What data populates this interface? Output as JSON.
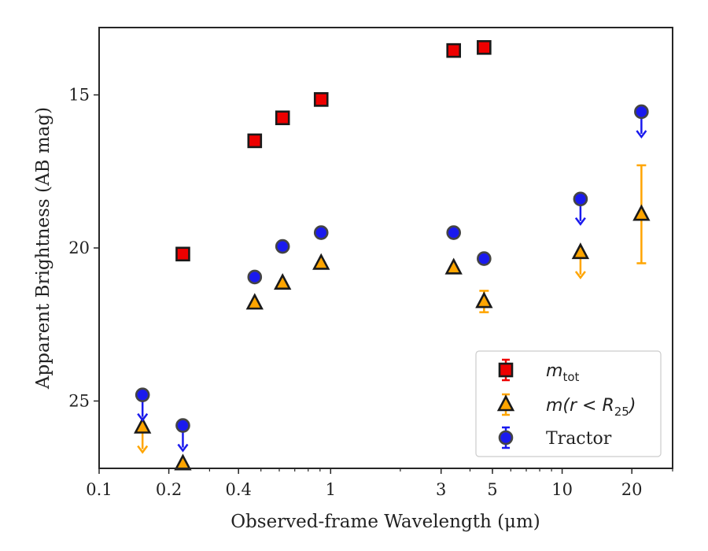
{
  "chart_data": {
    "type": "scatter",
    "xlabel": "Observed-frame Wavelength (μm)",
    "ylabel": "Apparent Brightness (AB mag)",
    "x_scale": "log",
    "xlim": [
      0.1,
      30
    ],
    "ylim": [
      12.8,
      27.2
    ],
    "y_inverted": true,
    "x_ticks": [
      {
        "value": 0.1,
        "label": "0.1"
      },
      {
        "value": 0.2,
        "label": "0.2"
      },
      {
        "value": 0.4,
        "label": "0.4"
      },
      {
        "value": 1,
        "label": "1"
      },
      {
        "value": 3,
        "label": "3"
      },
      {
        "value": 5,
        "label": "5"
      },
      {
        "value": 10,
        "label": "10"
      },
      {
        "value": 20,
        "label": "20"
      }
    ],
    "y_ticks": [
      {
        "value": 15,
        "label": "15"
      },
      {
        "value": 20,
        "label": "20"
      },
      {
        "value": 25,
        "label": "25"
      }
    ],
    "grid": false,
    "legend_position": "bottom-right",
    "series": [
      {
        "name": "m_tot",
        "marker": "square",
        "color": "#ee0000",
        "points": [
          {
            "x": 0.23,
            "y": 20.2
          },
          {
            "x": 0.47,
            "y": 16.5
          },
          {
            "x": 0.62,
            "y": 15.75
          },
          {
            "x": 0.91,
            "y": 15.15
          },
          {
            "x": 3.4,
            "y": 13.55
          },
          {
            "x": 4.6,
            "y": 13.45
          }
        ]
      },
      {
        "name": "m(r<R25)",
        "marker": "triangle",
        "color": "#ffa500",
        "points": [
          {
            "x": 0.154,
            "y": 25.85,
            "upper_limit": true
          },
          {
            "x": 0.23,
            "y": 27.05
          },
          {
            "x": 0.47,
            "y": 21.8
          },
          {
            "x": 0.62,
            "y": 21.15
          },
          {
            "x": 0.91,
            "y": 20.5
          },
          {
            "x": 3.4,
            "y": 20.65
          },
          {
            "x": 4.6,
            "y": 21.75,
            "err": 0.35
          },
          {
            "x": 12,
            "y": 20.15,
            "upper_limit": true
          },
          {
            "x": 22,
            "y": 18.9,
            "err": 1.6
          }
        ]
      },
      {
        "name": "Tractor",
        "marker": "circle",
        "color": "#1a1aee",
        "points": [
          {
            "x": 0.154,
            "y": 24.8,
            "upper_limit": true
          },
          {
            "x": 0.23,
            "y": 25.8,
            "upper_limit": true
          },
          {
            "x": 0.47,
            "y": 20.95
          },
          {
            "x": 0.62,
            "y": 19.95
          },
          {
            "x": 0.91,
            "y": 19.5
          },
          {
            "x": 3.4,
            "y": 19.5
          },
          {
            "x": 4.6,
            "y": 20.35
          },
          {
            "x": 12,
            "y": 18.4,
            "upper_limit": true
          },
          {
            "x": 22,
            "y": 15.55,
            "upper_limit": true
          }
        ]
      }
    ],
    "legend": [
      {
        "series": 0,
        "main": "m",
        "sub": "tot",
        "suffix": ""
      },
      {
        "series": 1,
        "main": "m(r < R",
        "sub": "25",
        "suffix": ")"
      },
      {
        "series": 2,
        "main": "Tractor",
        "sub": "",
        "suffix": ""
      }
    ]
  }
}
